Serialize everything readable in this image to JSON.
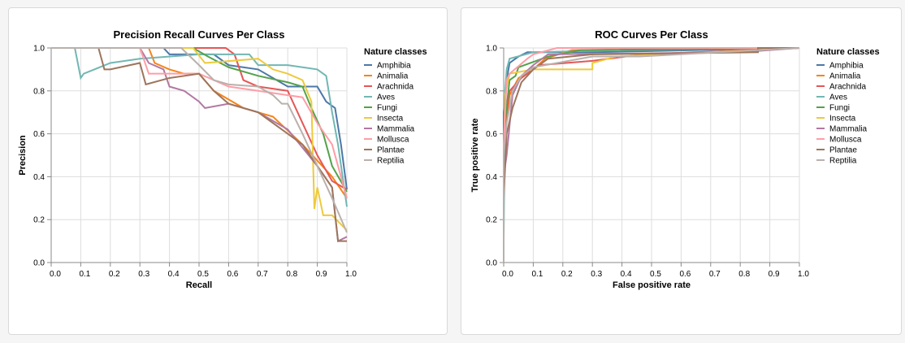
{
  "chart_data": [
    {
      "type": "line",
      "title": "Precision Recall Curves Per Class",
      "xlabel": "Recall",
      "ylabel": "Precision",
      "xlim": [
        0,
        1
      ],
      "ylim": [
        0,
        1
      ],
      "xticks": [
        "0.0",
        "0.1",
        "0.2",
        "0.3",
        "0.4",
        "0.5",
        "0.6",
        "0.7",
        "0.8",
        "0.9",
        "1.0"
      ],
      "yticks": [
        "0.0",
        "0.2",
        "0.4",
        "0.6",
        "0.8",
        "1.0"
      ],
      "grid": true,
      "legend_title": "Nature classes",
      "legend_position": "right",
      "series": [
        {
          "name": "Amphibia",
          "color": "#4c78a8",
          "points": [
            [
              0,
              1
            ],
            [
              0.38,
              1
            ],
            [
              0.4,
              0.97
            ],
            [
              0.55,
              0.97
            ],
            [
              0.6,
              0.92
            ],
            [
              0.7,
              0.9
            ],
            [
              0.8,
              0.82
            ],
            [
              0.9,
              0.82
            ],
            [
              0.93,
              0.75
            ],
            [
              0.96,
              0.72
            ],
            [
              0.98,
              0.55
            ],
            [
              1,
              0.34
            ]
          ]
        },
        {
          "name": "Animalia",
          "color": "#f58518",
          "points": [
            [
              0,
              1
            ],
            [
              0.33,
              1
            ],
            [
              0.35,
              0.93
            ],
            [
              0.4,
              0.9
            ],
            [
              0.45,
              0.88
            ],
            [
              0.5,
              0.88
            ],
            [
              0.55,
              0.8
            ],
            [
              0.65,
              0.72
            ],
            [
              0.75,
              0.68
            ],
            [
              0.85,
              0.55
            ],
            [
              0.95,
              0.4
            ],
            [
              1,
              0.3
            ]
          ]
        },
        {
          "name": "Arachnida",
          "color": "#e45756",
          "points": [
            [
              0,
              1
            ],
            [
              0.59,
              1
            ],
            [
              0.62,
              0.97
            ],
            [
              0.65,
              0.85
            ],
            [
              0.7,
              0.82
            ],
            [
              0.8,
              0.8
            ],
            [
              0.85,
              0.65
            ],
            [
              0.9,
              0.5
            ],
            [
              0.95,
              0.38
            ],
            [
              1,
              0.34
            ]
          ]
        },
        {
          "name": "Aves",
          "color": "#72b7b2",
          "points": [
            [
              0,
              1
            ],
            [
              0.08,
              1
            ],
            [
              0.1,
              0.86
            ],
            [
              0.11,
              0.88
            ],
            [
              0.2,
              0.93
            ],
            [
              0.3,
              0.95
            ],
            [
              0.5,
              0.97
            ],
            [
              0.67,
              0.97
            ],
            [
              0.7,
              0.92
            ],
            [
              0.8,
              0.92
            ],
            [
              0.9,
              0.9
            ],
            [
              0.93,
              0.87
            ],
            [
              0.95,
              0.7
            ],
            [
              0.97,
              0.55
            ],
            [
              1,
              0.26
            ]
          ]
        },
        {
          "name": "Fungi",
          "color": "#54a24b",
          "points": [
            [
              0,
              1
            ],
            [
              0.48,
              1
            ],
            [
              0.53,
              0.96
            ],
            [
              0.6,
              0.91
            ],
            [
              0.7,
              0.87
            ],
            [
              0.8,
              0.84
            ],
            [
              0.85,
              0.82
            ],
            [
              0.88,
              0.72
            ],
            [
              0.92,
              0.6
            ],
            [
              0.95,
              0.45
            ],
            [
              1,
              0.33
            ]
          ]
        },
        {
          "name": "Insecta",
          "color": "#eeca3b",
          "points": [
            [
              0,
              1
            ],
            [
              0.48,
              1
            ],
            [
              0.52,
              0.93
            ],
            [
              0.7,
              0.95
            ],
            [
              0.75,
              0.9
            ],
            [
              0.8,
              0.88
            ],
            [
              0.85,
              0.85
            ],
            [
              0.88,
              0.75
            ],
            [
              0.89,
              0.25
            ],
            [
              0.9,
              0.35
            ],
            [
              0.92,
              0.22
            ],
            [
              0.95,
              0.22
            ],
            [
              1,
              0.15
            ]
          ]
        },
        {
          "name": "Mammalia",
          "color": "#b279a2",
          "points": [
            [
              0,
              1
            ],
            [
              0.3,
              1
            ],
            [
              0.33,
              0.93
            ],
            [
              0.38,
              0.9
            ],
            [
              0.4,
              0.82
            ],
            [
              0.45,
              0.8
            ],
            [
              0.5,
              0.75
            ],
            [
              0.52,
              0.72
            ],
            [
              0.6,
              0.74
            ],
            [
              0.7,
              0.7
            ],
            [
              0.8,
              0.62
            ],
            [
              0.9,
              0.45
            ],
            [
              0.95,
              0.35
            ],
            [
              0.97,
              0.1
            ],
            [
              1,
              0.12
            ]
          ]
        },
        {
          "name": "Mollusca",
          "color": "#ff9da6",
          "points": [
            [
              0,
              1
            ],
            [
              0.3,
              1
            ],
            [
              0.33,
              0.88
            ],
            [
              0.5,
              0.88
            ],
            [
              0.55,
              0.85
            ],
            [
              0.6,
              0.82
            ],
            [
              0.7,
              0.8
            ],
            [
              0.8,
              0.78
            ],
            [
              0.85,
              0.77
            ],
            [
              0.9,
              0.65
            ],
            [
              0.95,
              0.55
            ],
            [
              1,
              0.3
            ]
          ]
        },
        {
          "name": "Plantae",
          "color": "#9d755d",
          "points": [
            [
              0,
              1
            ],
            [
              0.16,
              1
            ],
            [
              0.18,
              0.9
            ],
            [
              0.2,
              0.9
            ],
            [
              0.3,
              0.93
            ],
            [
              0.32,
              0.83
            ],
            [
              0.4,
              0.86
            ],
            [
              0.5,
              0.88
            ],
            [
              0.55,
              0.8
            ],
            [
              0.6,
              0.74
            ],
            [
              0.7,
              0.7
            ],
            [
              0.8,
              0.6
            ],
            [
              0.85,
              0.55
            ],
            [
              0.9,
              0.45
            ],
            [
              0.95,
              0.35
            ],
            [
              0.97,
              0.1
            ],
            [
              1,
              0.1
            ]
          ]
        },
        {
          "name": "Reptilia",
          "color": "#bab0ac",
          "points": [
            [
              0,
              1
            ],
            [
              0.44,
              1
            ],
            [
              0.5,
              0.92
            ],
            [
              0.55,
              0.85
            ],
            [
              0.6,
              0.83
            ],
            [
              0.7,
              0.82
            ],
            [
              0.75,
              0.78
            ],
            [
              0.78,
              0.74
            ],
            [
              0.8,
              0.74
            ],
            [
              0.85,
              0.6
            ],
            [
              0.9,
              0.45
            ],
            [
              0.95,
              0.3
            ],
            [
              1,
              0.14
            ]
          ]
        }
      ]
    },
    {
      "type": "line",
      "title": "ROC Curves Per Class",
      "xlabel": "False positive rate",
      "ylabel": "True positive rate",
      "xlim": [
        0,
        1
      ],
      "ylim": [
        0,
        1
      ],
      "xticks": [
        "0.0",
        "0.1",
        "0.2",
        "0.3",
        "0.4",
        "0.5",
        "0.6",
        "0.7",
        "0.8",
        "0.9",
        "1.0"
      ],
      "yticks": [
        "0.0",
        "0.2",
        "0.4",
        "0.6",
        "0.8",
        "1.0"
      ],
      "grid": true,
      "legend_title": "Nature classes",
      "legend_position": "right",
      "series": [
        {
          "name": "Amphibia",
          "color": "#4c78a8",
          "points": [
            [
              0,
              0
            ],
            [
              0,
              0.7
            ],
            [
              0.01,
              0.85
            ],
            [
              0.02,
              0.93
            ],
            [
              0.05,
              0.96
            ],
            [
              0.08,
              0.98
            ],
            [
              0.3,
              0.98
            ],
            [
              1,
              1
            ]
          ]
        },
        {
          "name": "Animalia",
          "color": "#f58518",
          "points": [
            [
              0,
              0
            ],
            [
              0,
              0.55
            ],
            [
              0.02,
              0.78
            ],
            [
              0.05,
              0.86
            ],
            [
              0.1,
              0.9
            ],
            [
              0.14,
              0.95
            ],
            [
              0.23,
              0.99
            ],
            [
              1,
              1
            ]
          ]
        },
        {
          "name": "Arachnida",
          "color": "#e45756",
          "points": [
            [
              0,
              0
            ],
            [
              0,
              0.6
            ],
            [
              0.02,
              0.8
            ],
            [
              0.06,
              0.86
            ],
            [
              0.12,
              0.92
            ],
            [
              0.3,
              0.94
            ],
            [
              0.47,
              0.97
            ],
            [
              1,
              1
            ]
          ]
        },
        {
          "name": "Aves",
          "color": "#72b7b2",
          "points": [
            [
              0,
              0
            ],
            [
              0,
              0.1
            ],
            [
              0.005,
              0.8
            ],
            [
              0.01,
              0.9
            ],
            [
              0.02,
              0.95
            ],
            [
              0.1,
              0.98
            ],
            [
              0.41,
              0.99
            ],
            [
              1,
              1
            ]
          ]
        },
        {
          "name": "Fungi",
          "color": "#54a24b",
          "points": [
            [
              0,
              0
            ],
            [
              0,
              0.6
            ],
            [
              0.02,
              0.85
            ],
            [
              0.04,
              0.87
            ],
            [
              0.05,
              0.91
            ],
            [
              0.15,
              0.96
            ],
            [
              0.26,
              0.99
            ],
            [
              1,
              1
            ]
          ]
        },
        {
          "name": "Insecta",
          "color": "#eeca3b",
          "points": [
            [
              0,
              0
            ],
            [
              0,
              0.5
            ],
            [
              0.005,
              0.78
            ],
            [
              0.02,
              0.88
            ],
            [
              0.1,
              0.9
            ],
            [
              0.3,
              0.9
            ],
            [
              0.3,
              0.93
            ],
            [
              0.38,
              0.96
            ],
            [
              1,
              1
            ]
          ]
        },
        {
          "name": "Mammalia",
          "color": "#b279a2",
          "points": [
            [
              0,
              0
            ],
            [
              0,
              0.4
            ],
            [
              0.01,
              0.5
            ],
            [
              0.03,
              0.78
            ],
            [
              0.06,
              0.87
            ],
            [
              0.1,
              0.92
            ],
            [
              0.15,
              0.97
            ],
            [
              0.8,
              0.98
            ],
            [
              1,
              1
            ]
          ]
        },
        {
          "name": "Mollusca",
          "color": "#ff9da6",
          "points": [
            [
              0,
              0
            ],
            [
              0,
              0.55
            ],
            [
              0.01,
              0.85
            ],
            [
              0.02,
              0.88
            ],
            [
              0.08,
              0.95
            ],
            [
              0.1,
              0.97
            ],
            [
              0.18,
              1
            ],
            [
              1,
              1
            ]
          ]
        },
        {
          "name": "Plantae",
          "color": "#9d755d",
          "points": [
            [
              0,
              0
            ],
            [
              0,
              0.3
            ],
            [
              0.01,
              0.6
            ],
            [
              0.03,
              0.72
            ],
            [
              0.06,
              0.84
            ],
            [
              0.1,
              0.9
            ],
            [
              0.15,
              0.95
            ],
            [
              0.3,
              0.97
            ],
            [
              0.86,
              0.98
            ],
            [
              0.86,
              1
            ],
            [
              1,
              1
            ]
          ]
        },
        {
          "name": "Reptilia",
          "color": "#bab0ac",
          "points": [
            [
              0,
              0
            ],
            [
              0,
              0.5
            ],
            [
              0.01,
              0.65
            ],
            [
              0.03,
              0.8
            ],
            [
              0.06,
              0.87
            ],
            [
              0.1,
              0.91
            ],
            [
              0.18,
              0.93
            ],
            [
              0.3,
              0.96
            ],
            [
              0.46,
              0.96
            ],
            [
              1,
              1
            ]
          ]
        }
      ]
    }
  ]
}
